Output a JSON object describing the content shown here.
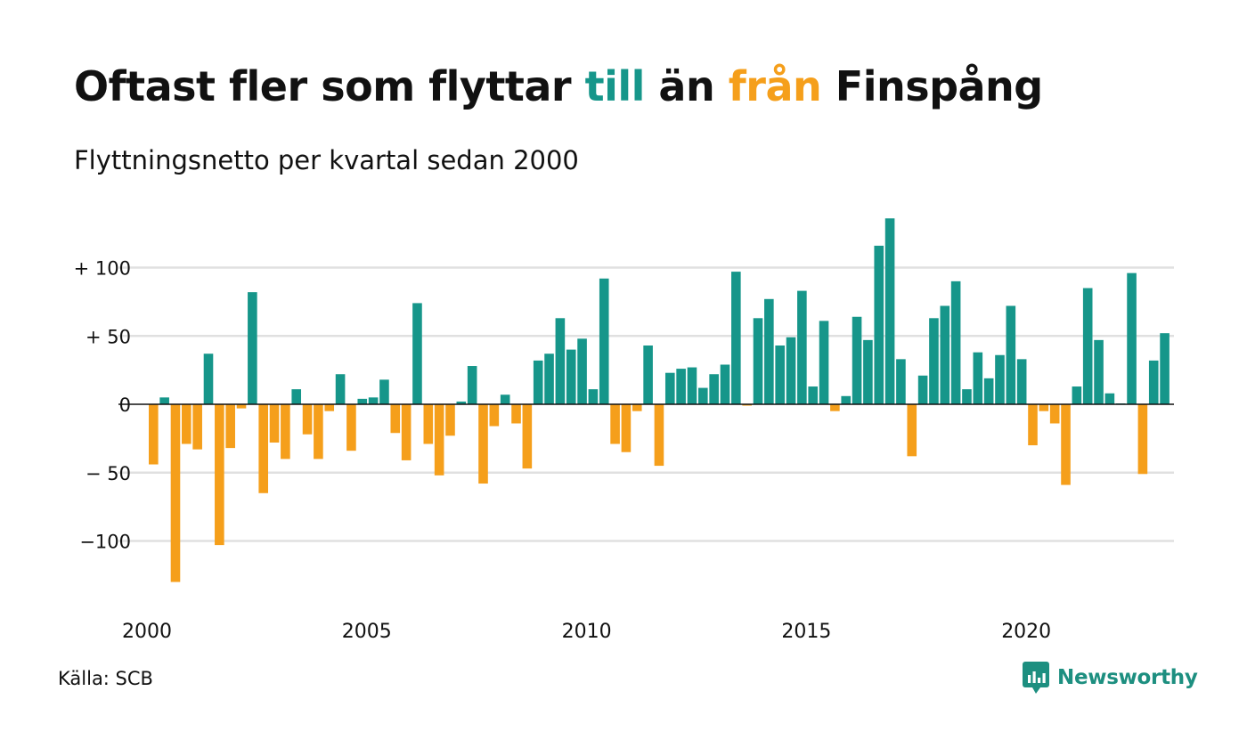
{
  "title_parts": [
    {
      "text": "Oftast fler som flyttar ",
      "role": "plain"
    },
    {
      "text": "till",
      "role": "positive"
    },
    {
      "text": " än ",
      "role": "plain"
    },
    {
      "text": "från",
      "role": "negative"
    },
    {
      "text": " Finspång",
      "role": "plain"
    }
  ],
  "subtitle": "Flyttningsnetto per kvartal sedan 2000",
  "source": "Källa: SCB",
  "brand": {
    "name": "Newsworthy",
    "icon": "newsworthy-logo-icon",
    "color": "#1d8f80"
  },
  "colors": {
    "positive": "#16968a",
    "negative": "#f59f1b",
    "grid": "#e0e0e0",
    "axis": "#111111",
    "text": "#111111"
  },
  "chart_data": {
    "type": "bar",
    "title": "Oftast fler som flyttar till än från Finspång",
    "subtitle": "Flyttningsnetto per kvartal sedan 2000",
    "xlabel": "",
    "ylabel": "",
    "grid": true,
    "ylim": [
      -140,
      140
    ],
    "y_ticks": [
      {
        "value": 100,
        "label": "+ 100"
      },
      {
        "value": 50,
        "label": "+  50"
      },
      {
        "value": 0,
        "label": "0"
      },
      {
        "value": -50,
        "label": "− 50"
      },
      {
        "value": -100,
        "label": "−100"
      }
    ],
    "x_ticks": [
      {
        "year": 2000,
        "label": "2000"
      },
      {
        "year": 2005,
        "label": "2005"
      },
      {
        "year": 2010,
        "label": "2010"
      },
      {
        "year": 2015,
        "label": "2015"
      },
      {
        "year": 2020,
        "label": "2020"
      }
    ],
    "start_year": 2000,
    "start_quarter": 1,
    "values": [
      -44,
      5,
      -130,
      -29,
      -33,
      37,
      -103,
      -32,
      -3,
      82,
      -65,
      -28,
      -40,
      11,
      -22,
      -40,
      -5,
      22,
      -34,
      4,
      5,
      18,
      -21,
      -41,
      74,
      -29,
      -52,
      -23,
      2,
      28,
      -58,
      -16,
      7,
      -14,
      -47,
      32,
      37,
      63,
      40,
      48,
      11,
      92,
      -29,
      -35,
      -5,
      43,
      -45,
      23,
      26,
      27,
      12,
      22,
      29,
      97,
      -1,
      63,
      77,
      43,
      49,
      83,
      13,
      61,
      -5,
      6,
      64,
      47,
      116,
      136,
      33,
      -38,
      21,
      63,
      72,
      90,
      11,
      38,
      19,
      36,
      72,
      33,
      -30,
      -5,
      -14,
      -59,
      13,
      85,
      47,
      8,
      0,
      96,
      -51,
      32,
      52
    ]
  }
}
